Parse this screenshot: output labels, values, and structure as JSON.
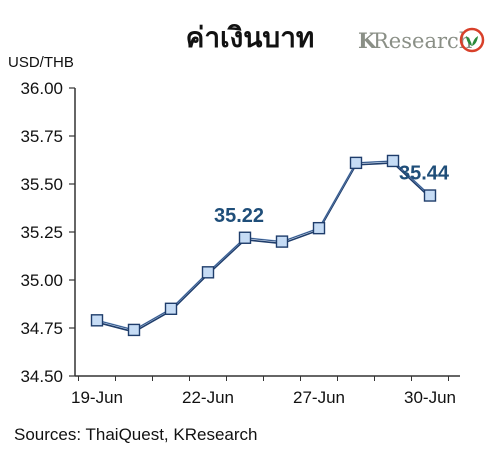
{
  "title": "ค่าเงินบาท",
  "brand": {
    "k": "K",
    "rest": "Research"
  },
  "source": "Sources: ThaiQuest, KResearch",
  "colors": {
    "line_dark": "#1f3d6b",
    "line_light": "#8eb4e3",
    "marker_fill": "#c6dcf5",
    "marker_stroke": "#1f3d6b",
    "label": "#1f4e79",
    "brand_green": "#2a8a3a",
    "brand_red": "#d8402a"
  },
  "chart_data": {
    "type": "line",
    "ylabel": "USD/THB",
    "ylim": [
      34.5,
      36.0
    ],
    "yticks": [
      "34.50",
      "34.75",
      "35.00",
      "35.25",
      "35.50",
      "35.75",
      "36.00"
    ],
    "xticks": [
      {
        "label": "19-Jun",
        "index": 0
      },
      {
        "label": "22-Jun",
        "index": 3
      },
      {
        "label": "27-Jun",
        "index": 6
      },
      {
        "label": "30-Jun",
        "index": 9
      }
    ],
    "values": [
      34.79,
      34.74,
      34.85,
      35.04,
      35.22,
      35.2,
      35.27,
      35.61,
      35.62,
      35.44
    ],
    "data_labels": [
      {
        "index": 4,
        "text": "35.22"
      },
      {
        "index": 9,
        "text": "35.44"
      }
    ],
    "grid": false
  }
}
